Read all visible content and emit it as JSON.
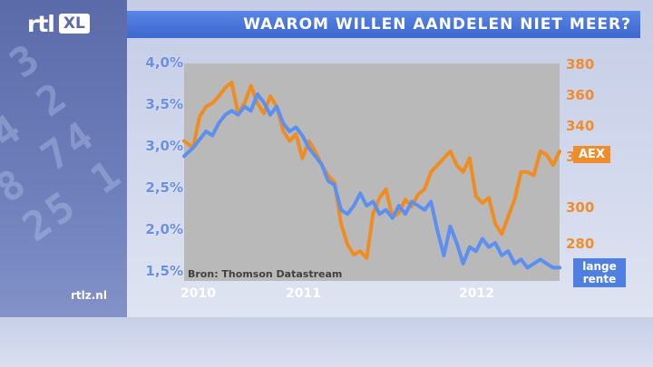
{
  "broadcast": {
    "logo_main": "rtl",
    "logo_badge": "XL",
    "title": "WAAROM WILLEN AANDELEN NIET MEER?",
    "site": "rtlz.nl",
    "panel_digits": "75 3\n34 2\n8 74\n25 1",
    "colors": {
      "title_bar": "#3c68cf",
      "rente_series": "#5b8ff0",
      "aex_series": "#f08c20",
      "plot_background": "#b9b9b9"
    }
  },
  "chart_data": {
    "type": "line",
    "source": "Bron: Thomson Datastream",
    "x_ticks": [
      "2010",
      "2011",
      "2012"
    ],
    "left_axis": {
      "ticks": [
        "4,0%",
        "3,5%",
        "3,0%",
        "2,5%",
        "2,0%",
        "1,5%"
      ],
      "ylim": [
        1.5,
        4.0
      ],
      "unit": "%"
    },
    "right_axis": {
      "ticks": [
        "380",
        "360",
        "340",
        "320",
        "300",
        "280"
      ],
      "ylim": [
        260,
        380
      ],
      "note": "bottom tick partially hidden by series label"
    },
    "x_range": [
      2009.93,
      2012.85
    ],
    "series": [
      {
        "name": "AEX",
        "label": "AEX",
        "axis": "right",
        "color": "#f08c20",
        "x": [
          2009.93,
          2010.0,
          2010.05,
          2010.1,
          2010.15,
          2010.2,
          2010.25,
          2010.3,
          2010.35,
          2010.4,
          2010.45,
          2010.5,
          2010.55,
          2010.6,
          2010.65,
          2010.7,
          2010.75,
          2010.8,
          2010.85,
          2010.9,
          2010.95,
          2011.0,
          2011.05,
          2011.1,
          2011.15,
          2011.2,
          2011.25,
          2011.3,
          2011.35,
          2011.4,
          2011.45,
          2011.5,
          2011.55,
          2011.6,
          2011.65,
          2011.7,
          2011.75,
          2011.8,
          2011.85,
          2011.9,
          2011.95,
          2012.0,
          2012.05,
          2012.1,
          2012.15,
          2012.2,
          2012.25,
          2012.3,
          2012.35,
          2012.4,
          2012.45,
          2012.5,
          2012.55,
          2012.6,
          2012.65,
          2012.7,
          2012.75,
          2012.8,
          2012.85
        ],
        "values": [
          336,
          332,
          350,
          356,
          358,
          362,
          367,
          370,
          352,
          358,
          368,
          358,
          352,
          362,
          356,
          342,
          336,
          340,
          326,
          336,
          330,
          322,
          316,
          312,
          288,
          276,
          270,
          272,
          268,
          294,
          303,
          308,
          292,
          294,
          302,
          298,
          305,
          308,
          318,
          322,
          326,
          330,
          322,
          318,
          326,
          304,
          300,
          303,
          288,
          282,
          292,
          302,
          318,
          318,
          316,
          330,
          328,
          322,
          330
        ]
      },
      {
        "name": "lange rente",
        "label": "lange rente",
        "axis": "left",
        "color": "#5b8ff0",
        "x": [
          2009.93,
          2010.0,
          2010.05,
          2010.1,
          2010.15,
          2010.2,
          2010.25,
          2010.3,
          2010.35,
          2010.4,
          2010.45,
          2010.5,
          2010.55,
          2010.6,
          2010.65,
          2010.7,
          2010.75,
          2010.8,
          2010.85,
          2010.9,
          2010.95,
          2011.0,
          2011.05,
          2011.1,
          2011.15,
          2011.2,
          2011.25,
          2011.3,
          2011.35,
          2011.4,
          2011.45,
          2011.5,
          2011.55,
          2011.6,
          2011.65,
          2011.7,
          2011.75,
          2011.8,
          2011.85,
          2011.9,
          2011.95,
          2012.0,
          2012.05,
          2012.1,
          2012.15,
          2012.2,
          2012.25,
          2012.3,
          2012.35,
          2012.4,
          2012.45,
          2012.5,
          2012.55,
          2012.6,
          2012.65,
          2012.7,
          2012.75,
          2012.8,
          2012.85
        ],
        "values": [
          2.9,
          3.0,
          3.1,
          3.2,
          3.15,
          3.3,
          3.4,
          3.45,
          3.4,
          3.5,
          3.45,
          3.65,
          3.55,
          3.4,
          3.5,
          3.3,
          3.2,
          3.25,
          3.15,
          3.0,
          2.9,
          2.8,
          2.6,
          2.55,
          2.25,
          2.2,
          2.3,
          2.45,
          2.3,
          2.35,
          2.2,
          2.25,
          2.15,
          2.3,
          2.2,
          2.35,
          2.3,
          2.25,
          2.35,
          2.0,
          1.7,
          2.05,
          1.85,
          1.6,
          1.8,
          1.75,
          1.9,
          1.8,
          1.85,
          1.7,
          1.75,
          1.6,
          1.65,
          1.55,
          1.6,
          1.65,
          1.6,
          1.55,
          1.55
        ]
      }
    ]
  }
}
